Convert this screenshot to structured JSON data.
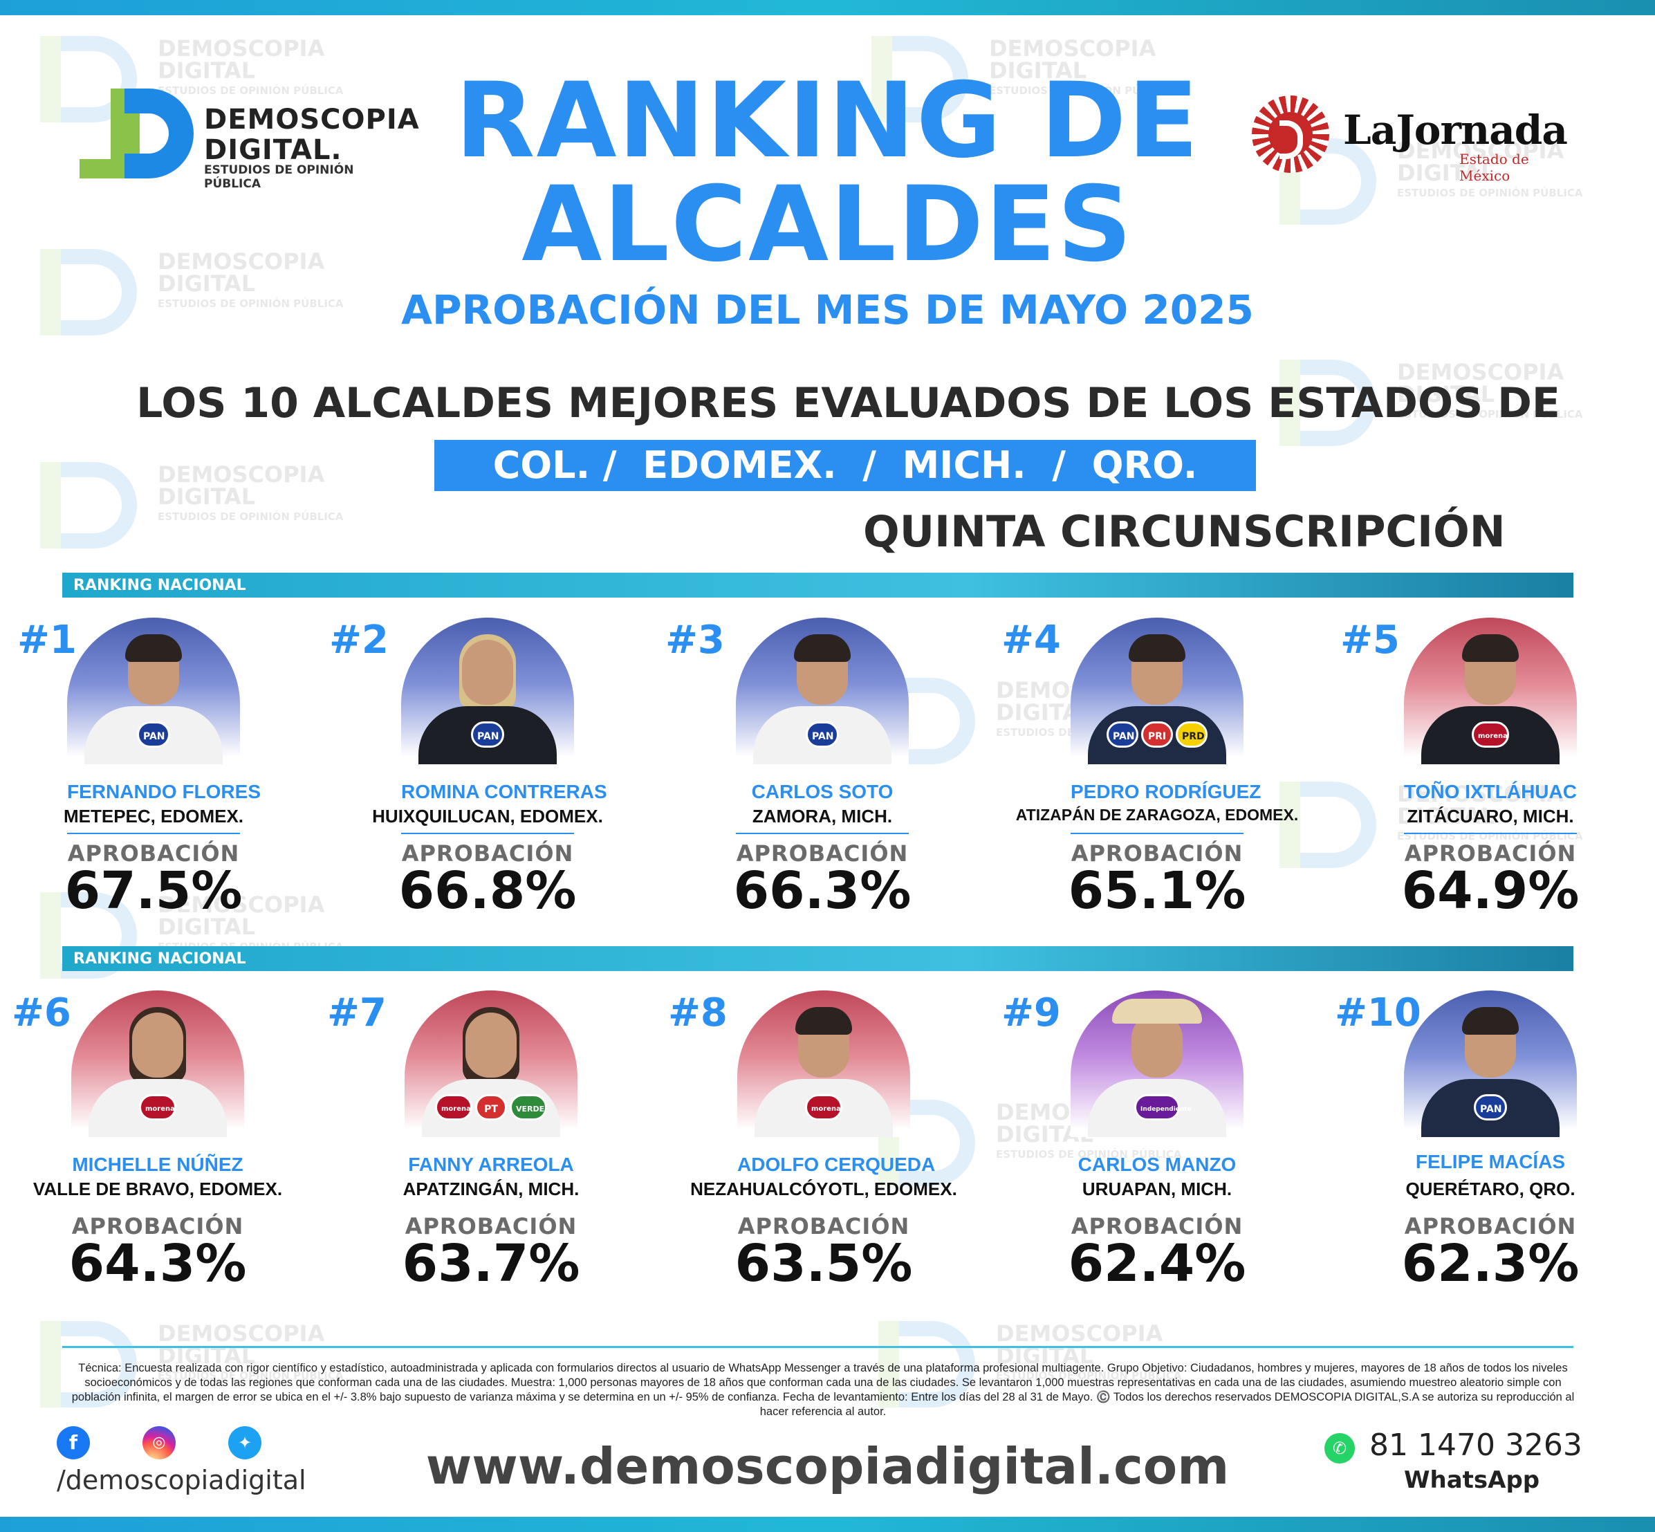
{
  "brand": {
    "demoscopia_line1": "DEMOSCOPIA",
    "demoscopia_line2": "DIGITAL.",
    "demoscopia_tagline": "ESTUDIOS DE OPINIÓN PÚBLICA",
    "jornada_name": "LaJornada",
    "jornada_sub": "Estado de México"
  },
  "watermark": {
    "line1": "DEMOSCOPIA",
    "line2": "DIGITAL",
    "line3": "ESTUDIOS DE OPINIÓN PÚBLICA"
  },
  "header": {
    "title_line1": "RANKING DE",
    "title_line2": "ALCALDES",
    "subtitle": "APROBACIÓN DEL MES DE MAYO 2025",
    "heading": "LOS 10 ALCALDES MEJORES EVALUADOS DE LOS ESTADOS DE",
    "states": "COL. /  EDOMEX.  /  MICH.  /  QRO.",
    "circumscription": "QUINTA CIRCUNSCRIPCIÓN"
  },
  "section_label": "RANKING NACIONAL",
  "approval_label": "APROBACIÓN",
  "mayors": [
    {
      "rank": "#1",
      "name": "FERNANDO FLORES",
      "city": "METEPEC, EDOMEX.",
      "approval": "67.5%",
      "approval_value": 67.5,
      "parties": [
        "PAN"
      ]
    },
    {
      "rank": "#2",
      "name": "ROMINA CONTRERAS",
      "city": "HUIXQUILUCAN, EDOMEX.",
      "approval": "66.8%",
      "approval_value": 66.8,
      "parties": [
        "PAN"
      ]
    },
    {
      "rank": "#3",
      "name": "CARLOS SOTO",
      "city": "ZAMORA, MICH.",
      "approval": "66.3%",
      "approval_value": 66.3,
      "parties": [
        "PAN"
      ]
    },
    {
      "rank": "#4",
      "name": "PEDRO RODRÍGUEZ",
      "city": "ATIZAPÁN DE ZARAGOZA, EDOMEX.",
      "approval": "65.1%",
      "approval_value": 65.1,
      "parties": [
        "PAN",
        "PRI",
        "PRD"
      ]
    },
    {
      "rank": "#5",
      "name": "TOÑO IXTLÁHUAC",
      "city": "ZITÁCUARO, MICH.",
      "approval": "64.9%",
      "approval_value": 64.9,
      "parties": [
        "morena"
      ]
    },
    {
      "rank": "#6",
      "name": "MICHELLE NÚÑEZ",
      "city": "VALLE DE BRAVO, EDOMEX.",
      "approval": "64.3%",
      "approval_value": 64.3,
      "parties": [
        "morena"
      ]
    },
    {
      "rank": "#7",
      "name": "FANNY ARREOLA",
      "city": "APATZINGÁN, MICH.",
      "approval": "63.7%",
      "approval_value": 63.7,
      "parties": [
        "morena",
        "PT",
        "VERDE"
      ]
    },
    {
      "rank": "#8",
      "name": "ADOLFO CERQUEDA",
      "city": "NEZAHUALCÓYOTL, EDOMEX.",
      "approval": "63.5%",
      "approval_value": 63.5,
      "parties": [
        "morena"
      ]
    },
    {
      "rank": "#9",
      "name": "CARLOS MANZO",
      "city": "URUAPAN, MICH.",
      "approval": "62.4%",
      "approval_value": 62.4,
      "parties": [
        "Independiente"
      ]
    },
    {
      "rank": "#10",
      "name": "FELIPE MACÍAS",
      "city": "QUERÉTARO, QRO.",
      "approval": "62.3%",
      "approval_value": 62.3,
      "parties": [
        "PAN"
      ]
    }
  ],
  "footer": {
    "methodology": "Técnica: Encuesta realizada con rigor científico y estadístico, autoadministrada y aplicada con formularios directos al usuario de WhatsApp Messenger a través de una plataforma profesional multiagente. Grupo Objetivo: Ciudadanos, hombres y mujeres, mayores de 18 años de todos los niveles socioeconómicos y de todas las regiones que conforman cada una de las ciudades. Muestra: 1,000 personas mayores de 18 años que conforman cada una de las ciudades. Se levantaron 1,000 muestras representativas en cada una de las ciudades, asumiendo muestreo aleatorio simple con población infinita, el margen de error se ubica en el +/- 3.8% bajo supuesto de varianza máxima y se determina en un +/- 95% de confianza. Fecha de levantamiento: Entre los días del 28 al 31 de Mayo. ©️ Todos los derechos reservados DEMOSCOPIA DIGITAL,S.A se autoriza su reproducción al hacer referencia al autor.",
    "social_handle": "/demoscopiadigital",
    "website": "www.demoscopiadigital.com",
    "phone": "81 1470 3263",
    "whatsapp_label": "WhatsApp",
    "icons": [
      "facebook-icon",
      "instagram-icon",
      "twitter-icon",
      "whatsapp-icon"
    ]
  },
  "colors": {
    "accent": "#2a8ff0",
    "teal": "#20a7cc",
    "text": "#111111",
    "morena": "#b5122a",
    "pan": "#1a3d99"
  }
}
